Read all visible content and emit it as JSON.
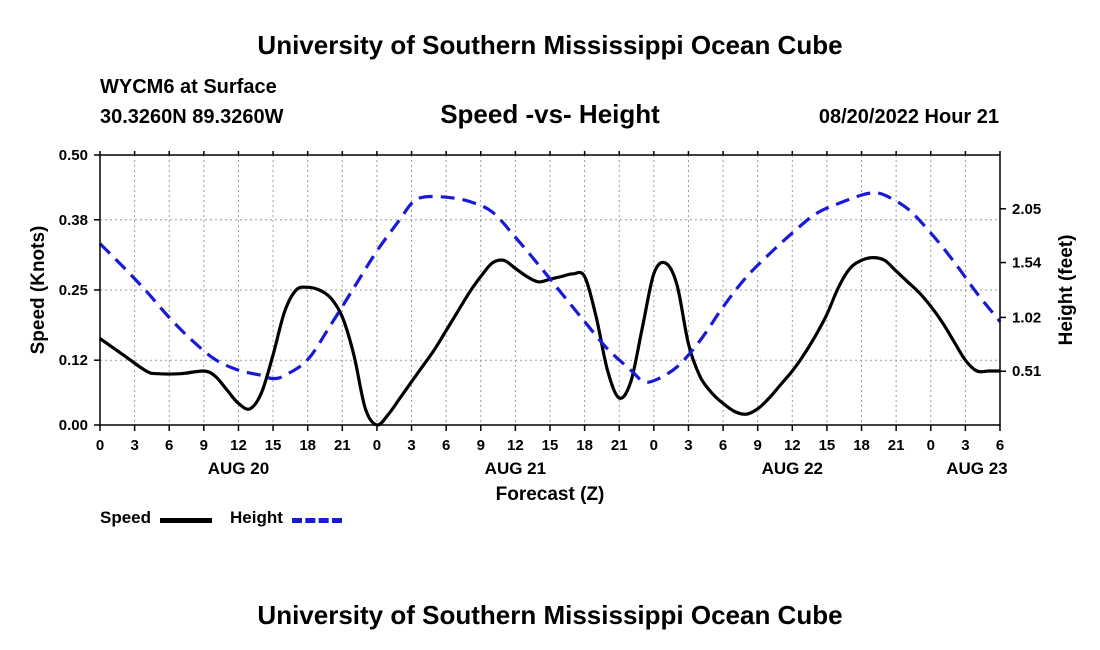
{
  "header": {
    "title": "University of Southern Mississippi Ocean Cube",
    "station": "WYCM6 at Surface",
    "coordinates": "30.3260N  89.3260W",
    "run_time": "08/20/2022 Hour 21"
  },
  "footer": {
    "title": "University of Southern Mississippi Ocean Cube"
  },
  "legend": {
    "speed_label": "Speed",
    "height_label": "Height"
  },
  "colors": {
    "speed": "#000000",
    "height": "#1a1ad6",
    "grid": "#999999"
  },
  "chart_data": {
    "type": "line",
    "title": "Speed -vs- Height",
    "xlabel": "Forecast (Z)",
    "ylabel": "Speed (Knots)",
    "y2label": "Height (feet)",
    "x_units": "hours since 2022-08-20 00Z",
    "xlim": [
      0,
      78
    ],
    "ylim": [
      0,
      0.5
    ],
    "y2lim": [
      0.0,
      2.56
    ],
    "x_ticks": [
      0,
      3,
      6,
      9,
      12,
      15,
      18,
      21,
      24,
      27,
      30,
      33,
      36,
      39,
      42,
      45,
      48,
      51,
      54,
      57,
      60,
      63,
      66,
      69,
      72,
      75,
      78
    ],
    "x_tick_labels": [
      "0",
      "3",
      "6",
      "9",
      "12",
      "15",
      "18",
      "21",
      "0",
      "3",
      "6",
      "9",
      "12",
      "15",
      "18",
      "21",
      "0",
      "3",
      "6",
      "9",
      "12",
      "15",
      "18",
      "21",
      "0",
      "3",
      "6"
    ],
    "date_labels": [
      {
        "x": 12,
        "label": "AUG 20"
      },
      {
        "x": 36,
        "label": "AUG 21"
      },
      {
        "x": 60,
        "label": "AUG 22"
      },
      {
        "x": 76,
        "label": "AUG 23"
      }
    ],
    "y_ticks": [
      0.0,
      0.12,
      0.25,
      0.38,
      0.5
    ],
    "y_tick_labels": [
      "0.00",
      "0.12",
      "0.25",
      "0.38",
      "0.50"
    ],
    "y2_ticks": [
      0.51,
      1.02,
      1.54,
      2.05
    ],
    "y2_tick_labels": [
      "0.51",
      "1.02",
      "1.54",
      "2.05"
    ],
    "series": [
      {
        "name": "Speed",
        "axis": "left",
        "style": "solid",
        "x": [
          0,
          2,
          4,
          5,
          7,
          9,
          10,
          11,
          12,
          13,
          14,
          15,
          16,
          17,
          18,
          19,
          20,
          21,
          22,
          23,
          24,
          25,
          26,
          27,
          28,
          29,
          30,
          31,
          32,
          33,
          34,
          35,
          36,
          37,
          38,
          39,
          40,
          41,
          42,
          43,
          44,
          45,
          46,
          47,
          48,
          49,
          50,
          51,
          52,
          53,
          54,
          55,
          56,
          57,
          58,
          59,
          60,
          61,
          62,
          63,
          64,
          65,
          66,
          67,
          68,
          69,
          70,
          71,
          72,
          73,
          74,
          75,
          76,
          77,
          78
        ],
        "values": [
          0.16,
          0.13,
          0.1,
          0.095,
          0.095,
          0.1,
          0.09,
          0.065,
          0.04,
          0.03,
          0.06,
          0.13,
          0.21,
          0.25,
          0.255,
          0.25,
          0.235,
          0.2,
          0.13,
          0.03,
          0.0,
          0.02,
          0.05,
          0.08,
          0.11,
          0.14,
          0.175,
          0.21,
          0.245,
          0.275,
          0.3,
          0.305,
          0.29,
          0.275,
          0.265,
          0.27,
          0.275,
          0.28,
          0.275,
          0.2,
          0.1,
          0.05,
          0.08,
          0.18,
          0.28,
          0.3,
          0.26,
          0.15,
          0.09,
          0.06,
          0.04,
          0.025,
          0.02,
          0.03,
          0.05,
          0.075,
          0.1,
          0.13,
          0.165,
          0.205,
          0.255,
          0.29,
          0.305,
          0.31,
          0.305,
          0.285,
          0.265,
          0.245,
          0.22,
          0.19,
          0.155,
          0.12,
          0.1,
          0.1,
          0.1
        ]
      },
      {
        "name": "Height",
        "axis": "right",
        "style": "dashed",
        "x": [
          0,
          2,
          4,
          6,
          8,
          10,
          12,
          14,
          15,
          16,
          18,
          20,
          22,
          24,
          26,
          27,
          28,
          30,
          32,
          34,
          36,
          38,
          40,
          42,
          44,
          46,
          47,
          48,
          50,
          52,
          54,
          56,
          58,
          60,
          62,
          64,
          66,
          67,
          68,
          70,
          72,
          74,
          76,
          78
        ],
        "values": [
          1.72,
          1.5,
          1.27,
          1.02,
          0.8,
          0.62,
          0.52,
          0.47,
          0.44,
          0.47,
          0.62,
          0.95,
          1.3,
          1.65,
          1.95,
          2.1,
          2.16,
          2.16,
          2.12,
          2.02,
          1.78,
          1.52,
          1.25,
          0.98,
          0.72,
          0.52,
          0.42,
          0.42,
          0.55,
          0.8,
          1.12,
          1.4,
          1.62,
          1.82,
          2.0,
          2.1,
          2.18,
          2.2,
          2.18,
          2.05,
          1.82,
          1.55,
          1.25,
          0.98
        ]
      }
    ]
  }
}
